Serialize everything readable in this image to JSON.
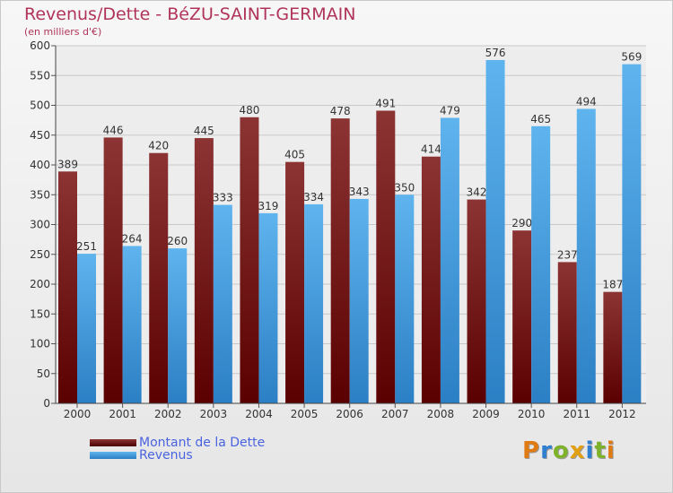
{
  "header": {
    "title": "Revenus/Dette - BéZU-SAINT-GERMAIN",
    "subtitle": "(en milliers d'€)"
  },
  "legend": {
    "items": [
      {
        "label": "Montant de la Dette",
        "color": "#7a0c0c"
      },
      {
        "label": "Revenus",
        "color": "#3a9be0"
      }
    ]
  },
  "logo": {
    "letters": [
      "P",
      "r",
      "o",
      "x",
      "i",
      "t",
      "i"
    ],
    "colors": [
      "#e07a12",
      "#2f7fd0",
      "#7fb22b",
      "#e0a012",
      "#2f7fd0",
      "#7fb22b",
      "#e07a12"
    ]
  },
  "chart_data": {
    "type": "bar",
    "title": "Revenus/Dette - BéZU-SAINT-GERMAIN",
    "subtitle": "(en milliers d'€)",
    "categories": [
      "2000",
      "2001",
      "2002",
      "2003",
      "2004",
      "2005",
      "2006",
      "2007",
      "2008",
      "2009",
      "2010",
      "2011",
      "2012"
    ],
    "series": [
      {
        "name": "Montant de la Dette",
        "color": "#7a0c0c",
        "values": [
          389,
          446,
          420,
          445,
          480,
          405,
          478,
          491,
          414,
          342,
          290,
          237,
          187
        ]
      },
      {
        "name": "Revenus",
        "color": "#3a9be0",
        "values": [
          251,
          264,
          260,
          333,
          319,
          334,
          343,
          350,
          479,
          576,
          465,
          494,
          569
        ]
      }
    ],
    "ylim": [
      0,
      600
    ],
    "yticks": [
      0,
      50,
      100,
      150,
      200,
      250,
      300,
      350,
      400,
      450,
      500,
      550,
      600
    ],
    "grid": true,
    "legend_position": "bottom-left"
  }
}
